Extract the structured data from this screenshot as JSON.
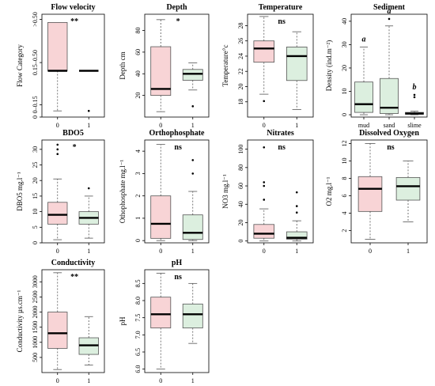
{
  "colors": {
    "group0": "#f8d4d6",
    "group1": "#dcefdf",
    "box_stroke": "#555555",
    "median": "#000000"
  },
  "chart_data": [
    {
      "type": "boxplot",
      "title": "Flow velocity",
      "ylabel": "Flow Category",
      "categories": [
        "0",
        "1"
      ],
      "y_axis": {
        "min": 0,
        "max": 1,
        "ticks": [
          {
            "v": 0.0,
            "label": "0"
          },
          {
            "v": 0.12,
            "label": "0–0.15"
          },
          {
            "v": 0.53,
            "label": "0.15–0.50"
          },
          {
            "v": 0.95,
            "label": ">0.50"
          }
        ]
      },
      "boxes": [
        {
          "whisker_low": 0.06,
          "q1": 0.45,
          "median": 0.45,
          "q3": 0.92,
          "whisker_high": 0.92,
          "outliers": []
        },
        {
          "whisker_low": 0.45,
          "q1": 0.45,
          "median": 0.45,
          "q3": 0.45,
          "whisker_high": 0.45,
          "outliers": [
            0.06
          ]
        }
      ],
      "significance": "**"
    },
    {
      "type": "boxplot",
      "title": "Depth",
      "ylabel": "Depth cm",
      "categories": [
        "0",
        "1"
      ],
      "y_axis": {
        "min": 0,
        "max": 95,
        "ticks": [
          {
            "v": 20,
            "label": "20"
          },
          {
            "v": 40,
            "label": "40"
          },
          {
            "v": 60,
            "label": "60"
          },
          {
            "v": 80,
            "label": "80"
          }
        ]
      },
      "boxes": [
        {
          "whisker_low": 5,
          "q1": 20,
          "median": 26,
          "q3": 65,
          "whisker_high": 90,
          "outliers": []
        },
        {
          "whisker_low": 25,
          "q1": 34,
          "median": 40,
          "q3": 44,
          "whisker_high": 50,
          "outliers": [
            10
          ]
        }
      ],
      "significance": "*"
    },
    {
      "type": "boxplot",
      "title": "Temperature",
      "ylabel": "Temperature°c",
      "categories": [
        "0",
        "1"
      ],
      "y_axis": {
        "min": 16,
        "max": 29.5,
        "ticks": [
          {
            "v": 18,
            "label": "18"
          },
          {
            "v": 20,
            "label": "20"
          },
          {
            "v": 22,
            "label": "22"
          },
          {
            "v": 24,
            "label": "24"
          },
          {
            "v": 26,
            "label": "26"
          },
          {
            "v": 28,
            "label": "28"
          }
        ]
      },
      "boxes": [
        {
          "whisker_low": 19,
          "q1": 23.2,
          "median": 25,
          "q3": 26,
          "whisker_high": 29.2,
          "outliers": [
            18.1
          ]
        },
        {
          "whisker_low": 17,
          "q1": 20.8,
          "median": 24,
          "q3": 25.2,
          "whisker_high": 27.2,
          "outliers": []
        }
      ],
      "significance": "ns"
    },
    {
      "type": "boxplot",
      "title": "Sediment",
      "ylabel": "Density (ind.m⁻²)",
      "categories": [
        "mud",
        "sand",
        "slime"
      ],
      "y_axis": {
        "min": -1,
        "max": 43,
        "ticks": [
          {
            "v": 0,
            "label": "0"
          },
          {
            "v": 10,
            "label": "10"
          },
          {
            "v": 20,
            "label": "20"
          },
          {
            "v": 30,
            "label": "30"
          },
          {
            "v": 40,
            "label": "40"
          }
        ]
      },
      "boxes": [
        {
          "whisker_low": 0,
          "q1": 1,
          "median": 4.5,
          "q3": 14,
          "whisker_high": 29,
          "outliers": []
        },
        {
          "whisker_low": 0,
          "q1": 0.5,
          "median": 3,
          "q3": 15.5,
          "whisker_high": 38,
          "outliers": [
            41
          ]
        },
        {
          "whisker_low": 0,
          "q1": 0.2,
          "median": 0.5,
          "q3": 1,
          "whisker_high": 1.5,
          "outliers": [
            7.5,
            8.5
          ]
        }
      ],
      "group_letters": [
        "a",
        "a",
        "b"
      ]
    },
    {
      "type": "boxplot",
      "title": "BDO5",
      "ylabel": "DBO5 mg.l⁻¹",
      "categories": [
        "0",
        "1"
      ],
      "y_axis": {
        "min": 0,
        "max": 33,
        "ticks": [
          {
            "v": 0,
            "label": "0"
          },
          {
            "v": 5,
            "label": "5"
          },
          {
            "v": 10,
            "label": "10"
          },
          {
            "v": 15,
            "label": "15"
          },
          {
            "v": 20,
            "label": "20"
          },
          {
            "v": 25,
            "label": "25"
          },
          {
            "v": 30,
            "label": "30"
          }
        ]
      },
      "boxes": [
        {
          "whisker_low": 1,
          "q1": 6,
          "median": 9,
          "q3": 13,
          "whisker_high": 20.5,
          "outliers": [
            28.5,
            30,
            31.5
          ]
        },
        {
          "whisker_low": 1.5,
          "q1": 6,
          "median": 8,
          "q3": 10,
          "whisker_high": 15,
          "outliers": [
            17.5
          ]
        }
      ],
      "significance": "*"
    },
    {
      "type": "boxplot",
      "title": "Orthophosphate",
      "ylabel": "Othophosphate mg.l⁻¹",
      "categories": [
        "0",
        "1"
      ],
      "y_axis": {
        "min": -0.1,
        "max": 4.5,
        "ticks": [
          {
            "v": 0,
            "label": "0"
          },
          {
            "v": 1,
            "label": "1"
          },
          {
            "v": 2,
            "label": "2"
          },
          {
            "v": 3,
            "label": "3"
          },
          {
            "v": 4,
            "label": "4"
          }
        ]
      },
      "boxes": [
        {
          "whisker_low": 0,
          "q1": 0.1,
          "median": 0.75,
          "q3": 2,
          "whisker_high": 4.3,
          "outliers": []
        },
        {
          "whisker_low": 0,
          "q1": 0.05,
          "median": 0.35,
          "q3": 1.15,
          "whisker_high": 2.2,
          "outliers": [
            3,
            3.6
          ]
        }
      ],
      "significance": "ns"
    },
    {
      "type": "boxplot",
      "title": "Nitrates",
      "ylabel": "NO3 mg.l⁻¹",
      "categories": [
        "0",
        "1"
      ],
      "y_axis": {
        "min": -2,
        "max": 110,
        "ticks": [
          {
            "v": 0,
            "label": "0"
          },
          {
            "v": 20,
            "label": "20"
          },
          {
            "v": 40,
            "label": "40"
          },
          {
            "v": 60,
            "label": "60"
          },
          {
            "v": 80,
            "label": "80"
          },
          {
            "v": 100,
            "label": "100"
          }
        ]
      },
      "boxes": [
        {
          "whisker_low": 0,
          "q1": 3,
          "median": 8,
          "q3": 18,
          "whisker_high": 35,
          "outliers": [
            45,
            60,
            64,
            102
          ]
        },
        {
          "whisker_low": 0,
          "q1": 2,
          "median": 3.5,
          "q3": 10,
          "whisker_high": 22,
          "outliers": [
            31,
            38,
            53
          ]
        }
      ],
      "significance": "ns"
    },
    {
      "type": "boxplot",
      "title": "Dissolved Oxygen",
      "ylabel": "O2 mg.l⁻¹",
      "categories": [
        "0",
        "1"
      ],
      "y_axis": {
        "min": 0.6,
        "max": 12.4,
        "ticks": [
          {
            "v": 2,
            "label": "2"
          },
          {
            "v": 4,
            "label": "4"
          },
          {
            "v": 6,
            "label": "6"
          },
          {
            "v": 8,
            "label": "8"
          },
          {
            "v": 10,
            "label": "10"
          },
          {
            "v": 12,
            "label": "12"
          }
        ]
      },
      "boxes": [
        {
          "whisker_low": 1,
          "q1": 4.2,
          "median": 6.8,
          "q3": 8.2,
          "whisker_high": 12,
          "outliers": []
        },
        {
          "whisker_low": 3,
          "q1": 5.5,
          "median": 7.1,
          "q3": 8.1,
          "whisker_high": 10,
          "outliers": []
        }
      ],
      "significance": "ns"
    },
    {
      "type": "boxplot",
      "title": "Conductivity",
      "ylabel": "Conductivity µs.cm⁻¹",
      "categories": [
        "0",
        "1"
      ],
      "y_axis": {
        "min": 0,
        "max": 3400,
        "ticks": [
          {
            "v": 500,
            "label": "500"
          },
          {
            "v": 1000,
            "label": "1000"
          },
          {
            "v": 1500,
            "label": "1500"
          },
          {
            "v": 2000,
            "label": "2000"
          },
          {
            "v": 2500,
            "label": "2500"
          },
          {
            "v": 3000,
            "label": "3000"
          }
        ]
      },
      "boxes": [
        {
          "whisker_low": 100,
          "q1": 800,
          "median": 1300,
          "q3": 2000,
          "whisker_high": 3300,
          "outliers": []
        },
        {
          "whisker_low": 250,
          "q1": 600,
          "median": 900,
          "q3": 1150,
          "whisker_high": 1850,
          "outliers": []
        }
      ],
      "significance": "**"
    },
    {
      "type": "boxplot",
      "title": "pH",
      "ylabel": "pH",
      "categories": [
        "0",
        "1"
      ],
      "y_axis": {
        "min": 5.9,
        "max": 8.9,
        "ticks": [
          {
            "v": 6.0,
            "label": "6.0"
          },
          {
            "v": 6.5,
            "label": "6.5"
          },
          {
            "v": 7.0,
            "label": "7.0"
          },
          {
            "v": 7.5,
            "label": "7.5"
          },
          {
            "v": 8.0,
            "label": "8.0"
          },
          {
            "v": 8.5,
            "label": "8.5"
          }
        ]
      },
      "boxes": [
        {
          "whisker_low": 6.0,
          "q1": 7.2,
          "median": 7.6,
          "q3": 8.1,
          "whisker_high": 8.8,
          "outliers": []
        },
        {
          "whisker_low": 6.75,
          "q1": 7.2,
          "median": 7.6,
          "q3": 7.9,
          "whisker_high": 8.5,
          "outliers": []
        }
      ],
      "significance": "ns"
    }
  ]
}
